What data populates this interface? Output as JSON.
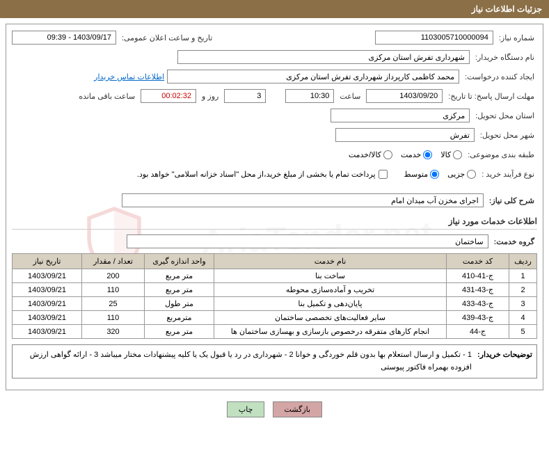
{
  "header": {
    "title": "جزئیات اطلاعات نیاز"
  },
  "fields": {
    "need_no_label": "شماره نیاز:",
    "need_no": "1103005710000094",
    "announce_label": "تاریخ و ساعت اعلان عمومی:",
    "announce_value": "1403/09/17 - 09:39",
    "buyer_org_label": "نام دستگاه خریدار:",
    "buyer_org": "شهرداری تفرش استان مرکزی",
    "requester_label": "ایجاد کننده درخواست:",
    "requester": "محمد کاظمی کارپرداز شهرداری تفرش استان مرکزی",
    "contact_link": "اطلاعات تماس خریدار",
    "deadline_label": "مهلت ارسال پاسخ: تا تاریخ:",
    "deadline_date": "1403/09/20",
    "time_label": "ساعت",
    "deadline_time": "10:30",
    "days_val": "3",
    "days_and": "روز و",
    "countdown": "00:02:32",
    "remain_label": "ساعت باقی مانده",
    "delivery_province_label": "استان محل تحویل:",
    "delivery_province": "مرکزی",
    "delivery_city_label": "شهر محل تحویل:",
    "delivery_city": "تفرش",
    "subject_class_label": "طبقه بندی موضوعی:",
    "radio_goods": "کالا",
    "radio_service": "خدمت",
    "radio_goods_service": "کالا/خدمت",
    "purchase_type_label": "نوع فرآیند خرید :",
    "radio_minor": "جزیی",
    "radio_medium": "متوسط",
    "treasury_check": "پرداخت تمام یا بخشی از مبلغ خرید،از محل \"اسناد خزانه اسلامی\" خواهد بود.",
    "desc_label": "شرح کلی نیاز:",
    "desc_value": "اجرای مخزن آب میدان امام",
    "services_title": "اطلاعات خدمات مورد نیاز",
    "group_label": "گروه خدمت:",
    "group_value": "ساختمان",
    "notes_label": "توضیحات خریدار:",
    "notes_text": "1 - تکمیل و ارسال استعلام بها بدون قلم خوردگی و خوانا 2 - شهرداری در رد یا قبول یک یا کلیه پیشنهادات مختار میباشد 3 - ارائه گواهی ارزش افزوده بهمراه فاکتور پیوستی"
  },
  "table": {
    "headers": {
      "row": "ردیف",
      "code": "کد خدمت",
      "name": "نام خدمت",
      "unit": "واحد اندازه گیری",
      "qty": "تعداد / مقدار",
      "date": "تاریخ نیاز"
    },
    "rows": [
      {
        "n": "1",
        "code": "ج-41-410",
        "name": "ساخت بنا",
        "unit": "متر مربع",
        "qty": "200",
        "date": "1403/09/21"
      },
      {
        "n": "2",
        "code": "ج-43-431",
        "name": "تخریب و آماده‌سازی محوطه",
        "unit": "متر مربع",
        "qty": "110",
        "date": "1403/09/21"
      },
      {
        "n": "3",
        "code": "ج-43-433",
        "name": "پایان‌دهی و تکمیل بنا",
        "unit": "متر طول",
        "qty": "25",
        "date": "1403/09/21"
      },
      {
        "n": "4",
        "code": "ج-43-439",
        "name": "سایر فعالیت‌های تخصصی ساختمان",
        "unit": "مترمربع",
        "qty": "110",
        "date": "1403/09/21"
      },
      {
        "n": "5",
        "code": "ج-44",
        "name": "انجام کارهای متفرقه درخصوص بازسازی و بهسازی ساختمان ها",
        "unit": "متر مربع",
        "qty": "320",
        "date": "1403/09/21"
      }
    ]
  },
  "buttons": {
    "back": "بازگشت",
    "print": "چاپ"
  },
  "watermark": "AriaTender.net",
  "colors": {
    "header_bg": "#8b6f47",
    "th_bg": "#d8d0c0",
    "border": "#999999",
    "link": "#0066cc",
    "btn_back": "#d4a5a5",
    "btn_print": "#c0e0c0"
  }
}
